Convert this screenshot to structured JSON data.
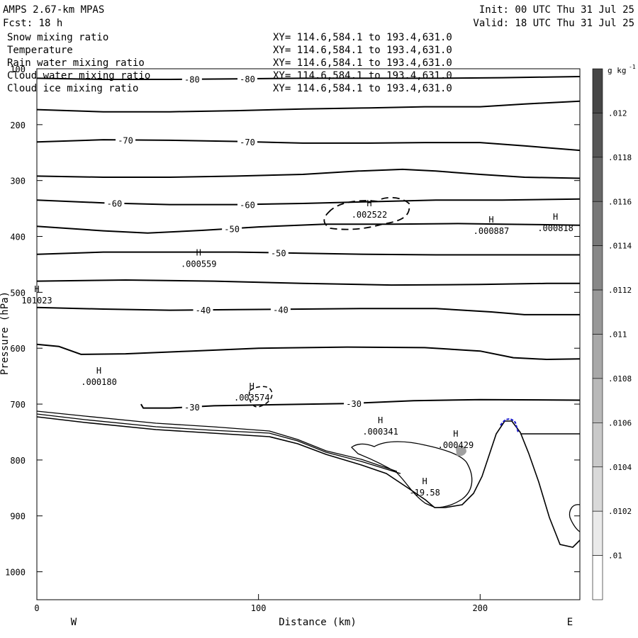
{
  "header": {
    "model": "AMPS 2.67-km MPAS",
    "init": "Init: 00 UTC Thu 31 Jul 25",
    "forecast": "Fcst:   18 h",
    "valid": "Valid: 18 UTC Thu 31 Jul 25"
  },
  "fields": [
    {
      "name": "Snow mixing ratio",
      "xy": "XY= 114.6,584.1 to 193.4,631.0",
      "color": "#000000"
    },
    {
      "name": "Temperature",
      "xy": "XY= 114.6,584.1 to 193.4,631.0",
      "color": "#000000"
    },
    {
      "name": "Rain water mixing ratio",
      "xy": "XY= 114.6,584.1 to 193.4,631.0",
      "color": "#e00000"
    },
    {
      "name": "Cloud water mixing ratio",
      "xy": "XY= 114.6,584.1 to 193.4,631.0",
      "color": "#0000d0"
    },
    {
      "name": "Cloud ice mixing ratio",
      "xy": "XY= 114.6,584.1 to 193.4,631.0",
      "color": "#000000"
    }
  ],
  "chart_data": {
    "type": "contour",
    "xlabel": "Distance (km)",
    "ylabel": "Pressure (hPa)",
    "xlim": [
      0,
      245
    ],
    "ylim": [
      1050,
      100
    ],
    "x_ticks": [
      0,
      100,
      200
    ],
    "y_ticks": [
      100,
      200,
      300,
      400,
      500,
      600,
      700,
      800,
      900,
      1000
    ],
    "direction_left": "W",
    "direction_right": "E",
    "colorbar": {
      "unit": "g kg",
      "unit_exp": "-1",
      "labels": [
        ".012",
        ".0118",
        ".0116",
        ".0114",
        ".0112",
        ".011",
        ".0108",
        ".0106",
        ".0104",
        ".0102",
        ".01"
      ]
    },
    "temperature_contours": [
      {
        "value": -80,
        "points": [
          [
            0,
            117
          ],
          [
            30,
            119
          ],
          [
            60,
            119
          ],
          [
            90,
            118
          ],
          [
            120,
            117
          ],
          [
            150,
            117
          ],
          [
            180,
            117
          ],
          [
            210,
            116
          ],
          [
            245,
            114
          ]
        ]
      },
      {
        "value": -70,
        "points": [
          [
            0,
            173
          ],
          [
            30,
            177
          ],
          [
            60,
            177
          ],
          [
            90,
            175
          ],
          [
            120,
            172
          ],
          [
            150,
            170
          ],
          [
            175,
            168
          ],
          [
            200,
            168
          ],
          [
            220,
            163
          ],
          [
            245,
            158
          ]
        ]
      },
      {
        "value": -70,
        "points": [
          [
            0,
            231
          ],
          [
            30,
            227
          ],
          [
            60,
            228
          ],
          [
            90,
            230
          ],
          [
            120,
            233
          ],
          [
            150,
            233
          ],
          [
            175,
            232
          ],
          [
            200,
            232
          ],
          [
            220,
            238
          ],
          [
            245,
            246
          ]
        ]
      },
      {
        "value": -60,
        "points": [
          [
            0,
            292
          ],
          [
            30,
            294
          ],
          [
            60,
            294
          ],
          [
            90,
            292
          ],
          [
            120,
            289
          ],
          [
            145,
            283
          ],
          [
            165,
            280
          ],
          [
            180,
            283
          ],
          [
            200,
            289
          ],
          [
            220,
            294
          ],
          [
            245,
            296
          ]
        ]
      },
      {
        "value": -60,
        "points": [
          [
            0,
            335
          ],
          [
            30,
            340
          ],
          [
            60,
            343
          ],
          [
            90,
            343
          ],
          [
            120,
            341
          ],
          [
            150,
            338
          ],
          [
            180,
            335
          ],
          [
            210,
            335
          ],
          [
            245,
            333
          ]
        ]
      },
      {
        "value": -50,
        "points": [
          [
            0,
            382
          ],
          [
            30,
            390
          ],
          [
            50,
            394
          ],
          [
            75,
            389
          ],
          [
            100,
            383
          ],
          [
            130,
            378
          ],
          [
            160,
            378
          ],
          [
            190,
            377
          ],
          [
            210,
            378
          ],
          [
            230,
            379
          ],
          [
            245,
            380
          ]
        ]
      },
      {
        "value": -50,
        "points": [
          [
            0,
            432
          ],
          [
            30,
            428
          ],
          [
            60,
            428
          ],
          [
            90,
            428
          ],
          [
            120,
            430
          ],
          [
            150,
            432
          ],
          [
            180,
            433
          ],
          [
            210,
            433
          ],
          [
            245,
            433
          ]
        ]
      },
      {
        "value": -40,
        "points": [
          [
            0,
            480
          ],
          [
            40,
            478
          ],
          [
            80,
            480
          ],
          [
            120,
            484
          ],
          [
            160,
            487
          ],
          [
            200,
            486
          ],
          [
            230,
            484
          ],
          [
            245,
            484
          ]
        ]
      },
      {
        "value": -40,
        "points": [
          [
            0,
            527
          ],
          [
            30,
            530
          ],
          [
            60,
            532
          ],
          [
            90,
            531
          ],
          [
            120,
            530
          ],
          [
            150,
            529
          ],
          [
            180,
            529
          ],
          [
            205,
            535
          ],
          [
            220,
            540
          ],
          [
            245,
            540
          ]
        ]
      },
      {
        "value": -30,
        "points": [
          [
            0,
            593
          ],
          [
            10,
            597
          ],
          [
            20,
            611
          ],
          [
            40,
            610
          ],
          [
            70,
            605
          ],
          [
            100,
            600
          ],
          [
            140,
            598
          ],
          [
            175,
            599
          ],
          [
            200,
            605
          ],
          [
            215,
            617
          ],
          [
            230,
            620
          ],
          [
            245,
            619
          ]
        ]
      },
      {
        "value": -30,
        "points": [
          [
            47,
            700
          ],
          [
            48,
            707
          ],
          [
            60,
            707
          ],
          [
            80,
            703
          ],
          [
            110,
            701
          ],
          [
            140,
            699
          ],
          [
            170,
            694
          ],
          [
            200,
            692
          ],
          [
            245,
            693
          ]
        ]
      }
    ],
    "maxima_labels": [
      {
        "value": ".002522",
        "x": 150,
        "p": 364
      },
      {
        "value": ".000887",
        "x": 205,
        "p": 393
      },
      {
        "value": ".000818",
        "x": 234,
        "p": 388
      },
      {
        "value": ".000559",
        "x": 73,
        "p": 452
      },
      {
        "value": "101023",
        "x": 0,
        "p": 517
      },
      {
        "value": ".000180",
        "x": 28,
        "p": 663
      },
      {
        "value": ".003574",
        "x": 97,
        "p": 691
      },
      {
        "value": ".000341",
        "x": 155,
        "p": 752
      },
      {
        "value": ".000429",
        "x": 189,
        "p": 776
      },
      {
        "value": "-19.58",
        "x": 175,
        "p": 861
      }
    ]
  }
}
